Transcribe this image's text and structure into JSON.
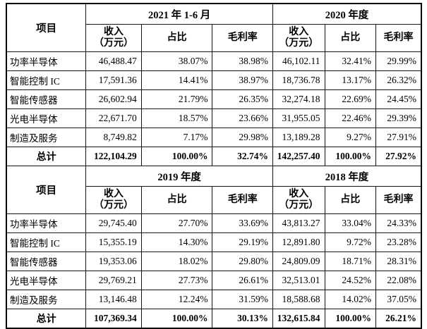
{
  "table": {
    "item_header": "项目",
    "column_headers": {
      "income_line1": "收入",
      "income_line2": "（万元）",
      "share": "占比",
      "margin": "毛利率"
    },
    "sections": [
      {
        "periods": [
          "2021 年 1-6 月",
          "2020 年度"
        ],
        "rows": [
          {
            "label": "功率半导体",
            "cells": [
              "46,488.47",
              "38.07%",
              "38.98%",
              "46,102.11",
              "32.41%",
              "29.99%"
            ]
          },
          {
            "label": "智能控制 IC",
            "cells": [
              "17,591.36",
              "14.41%",
              "38.97%",
              "18,736.78",
              "13.17%",
              "26.32%"
            ]
          },
          {
            "label": "智能传感器",
            "cells": [
              "26,602.94",
              "21.79%",
              "26.35%",
              "32,274.18",
              "22.69%",
              "24.45%"
            ]
          },
          {
            "label": "光电半导体",
            "cells": [
              "22,671.70",
              "18.57%",
              "23.66%",
              "31,955.05",
              "22.46%",
              "29.39%"
            ]
          },
          {
            "label": "制造及服务",
            "cells": [
              "8,749.82",
              "7.17%",
              "29.98%",
              "13,189.28",
              "9.27%",
              "27.91%"
            ]
          }
        ],
        "total": {
          "label": "总计",
          "cells": [
            "122,104.29",
            "100.00%",
            "32.74%",
            "142,257.40",
            "100.00%",
            "27.92%"
          ]
        }
      },
      {
        "periods": [
          "2019 年度",
          "2018 年度"
        ],
        "rows": [
          {
            "label": "功率半导体",
            "cells": [
              "29,745.40",
              "27.70%",
              "33.69%",
              "43,813.27",
              "33.04%",
              "24.33%"
            ]
          },
          {
            "label": "智能控制 IC",
            "cells": [
              "15,355.19",
              "14.30%",
              "29.19%",
              "12,891.80",
              "9.72%",
              "23.28%"
            ]
          },
          {
            "label": "智能传感器",
            "cells": [
              "19,353.06",
              "18.02%",
              "29.80%",
              "24,809.09",
              "18.71%",
              "28.31%"
            ]
          },
          {
            "label": "光电半导体",
            "cells": [
              "29,769.21",
              "27.73%",
              "26.61%",
              "32,513.01",
              "24.52%",
              "22.08%"
            ]
          },
          {
            "label": "制造及服务",
            "cells": [
              "13,146.48",
              "12.24%",
              "31.59%",
              "18,588.68",
              "14.02%",
              "37.05%"
            ]
          }
        ],
        "total": {
          "label": "总计",
          "cells": [
            "107,369.34",
            "100.00%",
            "30.13%",
            "132,615.84",
            "100.00%",
            "26.21%"
          ]
        }
      }
    ]
  }
}
